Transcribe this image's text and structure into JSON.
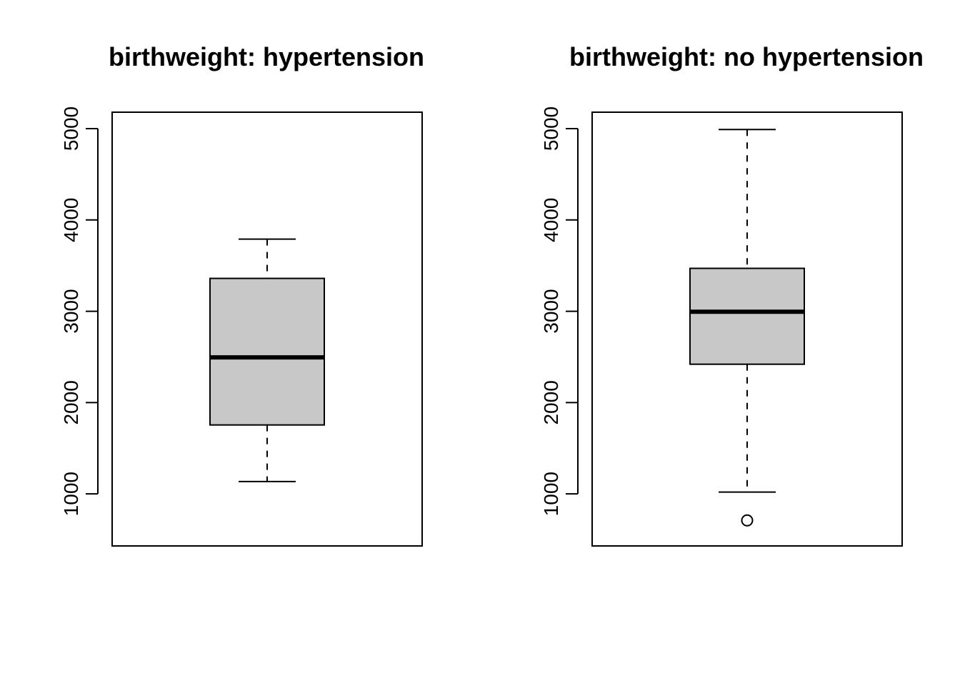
{
  "chart_data": [
    {
      "type": "box",
      "title": "birthweight: hypertension",
      "ylim": [
        430,
        5180
      ],
      "yticks": [
        1000,
        2000,
        3000,
        4000,
        5000
      ],
      "ytick_labels": [
        "1000",
        "2000",
        "3000",
        "4000",
        "5000"
      ],
      "box": {
        "whisker_low": 1135,
        "q1": 1755,
        "median": 2495,
        "q3": 3360,
        "whisker_high": 3790
      },
      "outliers": [],
      "box_fill": "#C8C8C8"
    },
    {
      "type": "box",
      "title": "birthweight: no hypertension",
      "ylim": [
        430,
        5180
      ],
      "yticks": [
        1000,
        2000,
        3000,
        4000,
        5000
      ],
      "ytick_labels": [
        "1000",
        "2000",
        "3000",
        "4000",
        "5000"
      ],
      "box": {
        "whisker_low": 1020,
        "q1": 2420,
        "median": 2995,
        "q3": 3470,
        "whisker_high": 4990
      },
      "outliers": [
        710
      ],
      "box_fill": "#C8C8C8"
    }
  ]
}
